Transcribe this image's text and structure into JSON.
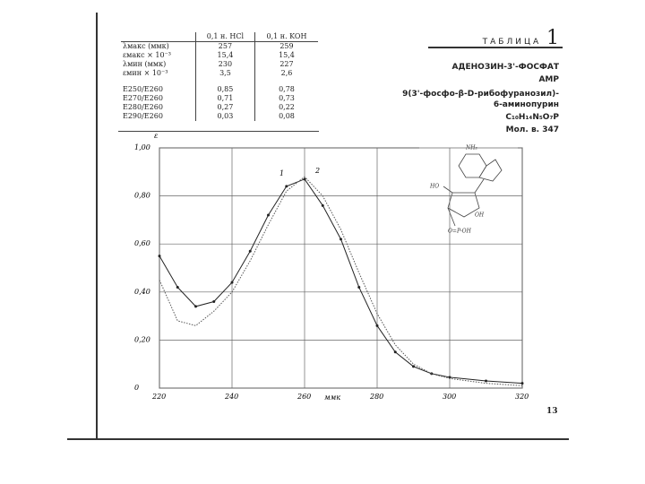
{
  "header": {
    "table_label": "ТАБЛИЦА",
    "table_number": "1",
    "name": "АДЕНОЗИН-3'-ФОСФАТ",
    "abbreviation": "АМР",
    "systematic_1": "9(3'-фосфо-β-D-рибофуранозил)-",
    "systematic_2": "6-аминопурин",
    "formula": "C₁₀H₁₄N₅O₇P",
    "mol_weight": "Мол. в. 347"
  },
  "table": {
    "header": [
      "0,1 н. HCl",
      "0,1 н. KOH"
    ],
    "rows": [
      [
        "λмакс (ммк)",
        "257",
        "259"
      ],
      [
        "εмакс × 10⁻³",
        "15,4",
        "15,4"
      ],
      [
        "λмин (ммк)",
        "230",
        "227"
      ],
      [
        "εмин × 10⁻³",
        "3,5",
        "2,6"
      ],
      [
        "E250/E260",
        "0,85",
        "0,78"
      ],
      [
        "E270/E260",
        "0,71",
        "0,73"
      ],
      [
        "E280/E260",
        "0,27",
        "0,22"
      ],
      [
        "E290/E260",
        "0,03",
        "0,08"
      ]
    ]
  },
  "page_number": "13",
  "chart_data": {
    "type": "line",
    "y_label": "ε",
    "x_label": "ммк",
    "x": [
      220,
      225,
      230,
      235,
      240,
      245,
      250,
      255,
      260,
      265,
      270,
      275,
      280,
      285,
      290,
      295,
      300,
      310,
      320
    ],
    "series": [
      {
        "name": "1",
        "color": "#222222",
        "values": [
          0.55,
          0.42,
          0.34,
          0.36,
          0.44,
          0.57,
          0.72,
          0.84,
          0.87,
          0.76,
          0.62,
          0.42,
          0.26,
          0.15,
          0.09,
          0.06,
          0.045,
          0.03,
          0.02
        ]
      },
      {
        "name": "2",
        "color": "#555555",
        "values": [
          0.45,
          0.28,
          0.26,
          0.32,
          0.4,
          0.53,
          0.68,
          0.82,
          0.88,
          0.8,
          0.66,
          0.48,
          0.31,
          0.18,
          0.1,
          0.06,
          0.04,
          0.02,
          0.01
        ]
      }
    ],
    "xlim": [
      220,
      320
    ],
    "xticks": [
      220,
      240,
      260,
      280,
      300,
      320
    ],
    "ylim": [
      0,
      1
    ],
    "yticks": [
      0,
      {
        "value": 0.2,
        "label": "0,20"
      },
      {
        "value": 0.4,
        "label": "0,40"
      },
      {
        "value": 0.6,
        "label": "0,60"
      },
      {
        "value": 0.8,
        "label": "0,80"
      },
      {
        "value": 1,
        "label": "1,00"
      }
    ],
    "grid": true
  }
}
